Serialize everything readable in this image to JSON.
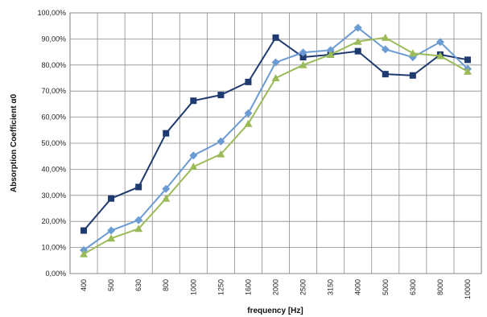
{
  "chart_data": {
    "type": "line",
    "title": "",
    "xlabel": "frequency [Hz]",
    "ylabel": "Absorption Coefficient α0",
    "categories": [
      "400",
      "500",
      "630",
      "800",
      "1000",
      "1250",
      "1600",
      "2000",
      "2500",
      "3150",
      "4000",
      "5000",
      "6300",
      "8000",
      "10000"
    ],
    "ylim": [
      0,
      100
    ],
    "yticks": [
      0,
      10,
      20,
      30,
      40,
      50,
      60,
      70,
      80,
      90,
      100
    ],
    "ytick_labels": [
      "0,00%",
      "10,00%",
      "20,00%",
      "30,00%",
      "40,00%",
      "50,00%",
      "60,00%",
      "70,00%",
      "80,00%",
      "90,00%",
      "100,00%"
    ],
    "grid": true,
    "legend": "none",
    "series": [
      {
        "color": "#1f3a6e",
        "marker": "square",
        "values": [
          16.5,
          28.8,
          33.2,
          53.8,
          66.3,
          68.5,
          73.5,
          90.5,
          83.0,
          84.0,
          85.3,
          76.5,
          76.0,
          84.0,
          82.0
        ]
      },
      {
        "color": "#6a9bd3",
        "marker": "diamond",
        "values": [
          9.0,
          16.5,
          20.5,
          32.5,
          45.3,
          50.7,
          61.5,
          81.0,
          84.8,
          85.7,
          94.3,
          86.0,
          83.0,
          88.8,
          78.5
        ]
      },
      {
        "color": "#9bbb59",
        "marker": "triangle",
        "values": [
          7.5,
          13.5,
          17.2,
          28.8,
          41.0,
          45.8,
          57.5,
          75.0,
          80.0,
          84.0,
          89.0,
          90.5,
          84.5,
          83.5,
          77.5
        ]
      }
    ]
  }
}
